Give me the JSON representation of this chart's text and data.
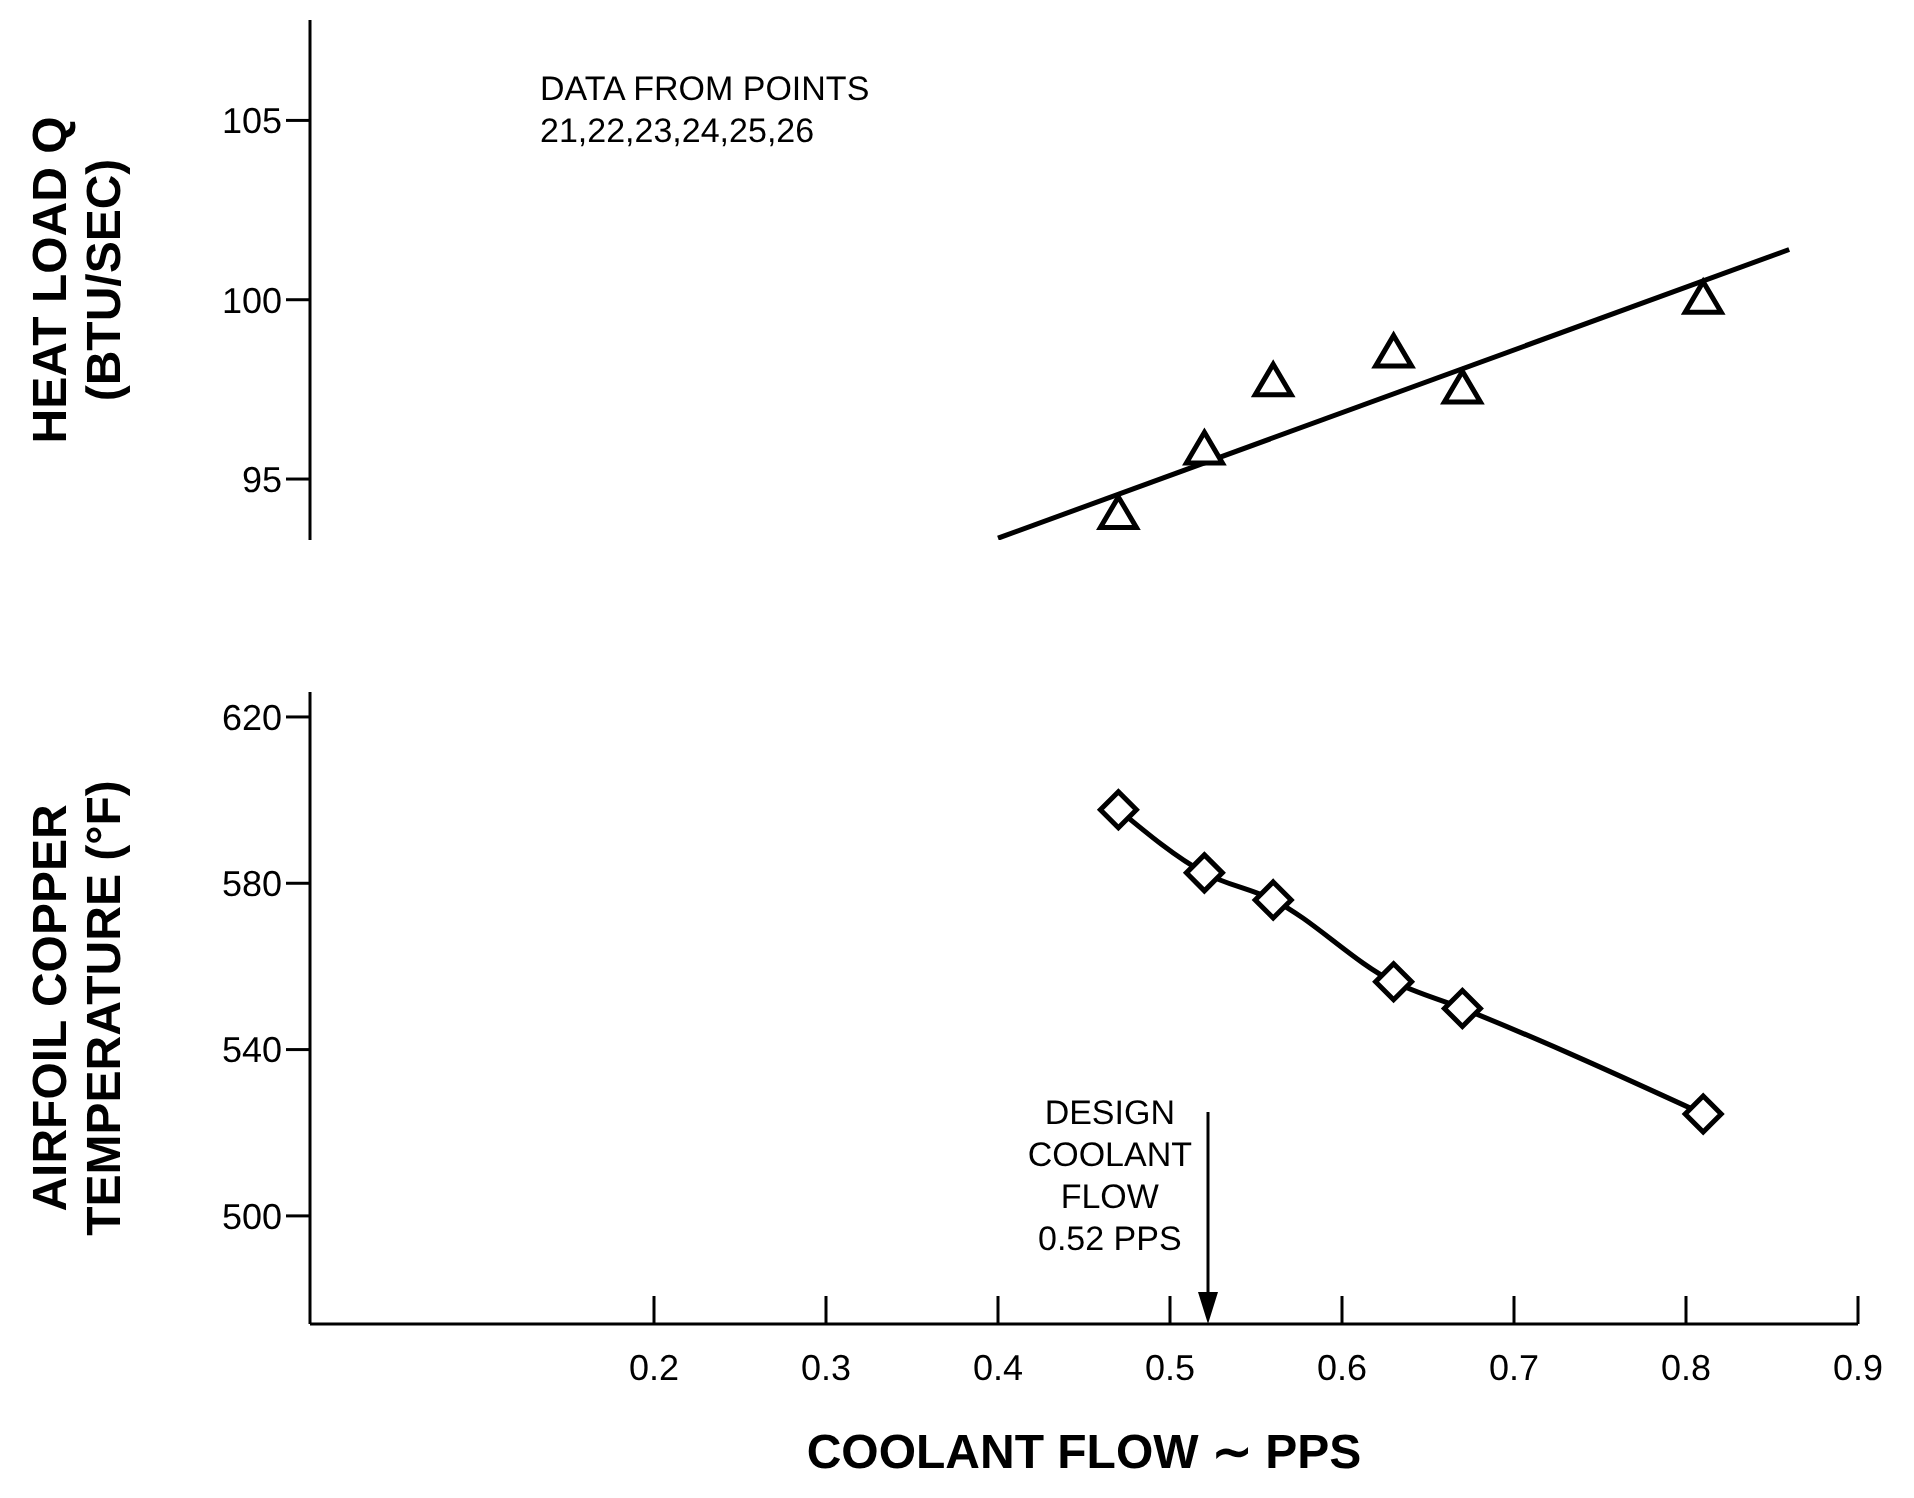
{
  "chart_data": [
    {
      "type": "scatter",
      "ylabel": "HEAT LOAD Q\n(BTU/SEC)",
      "xlim": [
        0,
        0.9
      ],
      "xticks": [
        0.2,
        0.3,
        0.4,
        0.5,
        0.6,
        0.7,
        0.8,
        0.9
      ],
      "ylim": [
        93.3,
        107.8
      ],
      "yticks": [
        95,
        100,
        105
      ],
      "tick_labels": "y",
      "grid": false,
      "legend": false,
      "annotations": [
        "DATA FROM POINTS\n21,22,23,24,25,26"
      ],
      "series": [
        {
          "marker": "triangle",
          "color": "#000000",
          "x": [
            0.47,
            0.52,
            0.56,
            0.63,
            0.67,
            0.81
          ],
          "values": [
            94.0,
            95.8,
            97.7,
            98.5,
            97.5,
            100.0
          ]
        },
        {
          "type": "line",
          "marker": "none",
          "color": "#000000",
          "x": [
            0.4,
            0.86
          ],
          "values": [
            93.35,
            101.4
          ]
        }
      ]
    },
    {
      "type": "line",
      "ylabel": "AIRFOIL COPPER\nTEMPERATURE (°F)",
      "xlabel": "COOLANT FLOW ∼ PPS",
      "xlim": [
        0,
        0.9
      ],
      "xticks": [
        0.2,
        0.3,
        0.4,
        0.5,
        0.6,
        0.7,
        0.8,
        0.9
      ],
      "ylim": [
        474,
        626
      ],
      "yticks": [
        500,
        540,
        580,
        620
      ],
      "grid": false,
      "legend": false,
      "annotations": [
        "DESIGN\nCOOLANT\nFLOW\n0.52 PPS"
      ],
      "series": [
        {
          "marker": "diamond",
          "color": "#000000",
          "x": [
            0.47,
            0.52,
            0.56,
            0.63,
            0.67,
            0.81
          ],
          "values": [
            597.7,
            582.5,
            576,
            556.3,
            549.9,
            524.5
          ]
        }
      ]
    }
  ]
}
